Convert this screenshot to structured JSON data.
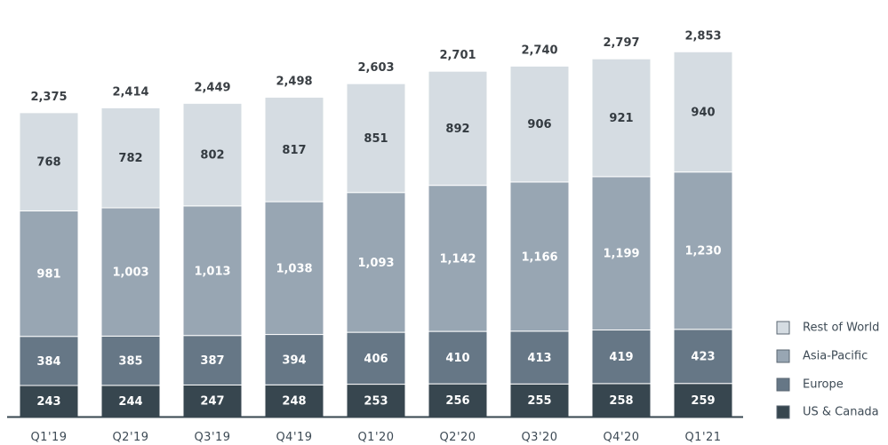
{
  "chart_data": {
    "type": "bar",
    "stacked": true,
    "categories": [
      "Q1'19",
      "Q2'19",
      "Q3'19",
      "Q4'19",
      "Q1'20",
      "Q2'20",
      "Q3'20",
      "Q4'20",
      "Q1'21"
    ],
    "series": [
      {
        "name": "US & Canada",
        "color": "#37464f",
        "label_color": "#ffffff",
        "values": [
          243,
          244,
          247,
          248,
          253,
          256,
          255,
          258,
          259
        ]
      },
      {
        "name": "Europe",
        "color": "#667786",
        "label_color": "#ffffff",
        "values": [
          384,
          385,
          387,
          394,
          406,
          410,
          413,
          419,
          423
        ]
      },
      {
        "name": "Asia-Pacific",
        "color": "#98a6b3",
        "label_color": "#ffffff",
        "values": [
          981,
          1003,
          1013,
          1038,
          1093,
          1142,
          1166,
          1199,
          1230
        ]
      },
      {
        "name": "Rest of World",
        "color": "#d5dce2",
        "label_color": "#333a40",
        "values": [
          768,
          782,
          802,
          817,
          851,
          892,
          906,
          921,
          940
        ]
      }
    ],
    "totals": [
      "2,375",
      "2,414",
      "2,449",
      "2,498",
      "2,603",
      "2,701",
      "2,740",
      "2,797",
      "2,853"
    ],
    "segment_labels": [
      [
        "243",
        "244",
        "247",
        "248",
        "253",
        "256",
        "255",
        "258",
        "259"
      ],
      [
        "384",
        "385",
        "387",
        "394",
        "406",
        "410",
        "413",
        "419",
        "423"
      ],
      [
        "981",
        "1,003",
        "1,013",
        "1,038",
        "1,093",
        "1,142",
        "1,166",
        "1,199",
        "1,230"
      ],
      [
        "768",
        "782",
        "802",
        "817",
        "851",
        "892",
        "906",
        "921",
        "940"
      ]
    ],
    "ylim": [
      0,
      3200
    ],
    "grid": false,
    "legend_position": "bottom-right",
    "legend_order": [
      "Rest of World",
      "Asia-Pacific",
      "Europe",
      "US & Canada"
    ],
    "title": "",
    "xlabel": "",
    "ylabel": ""
  }
}
